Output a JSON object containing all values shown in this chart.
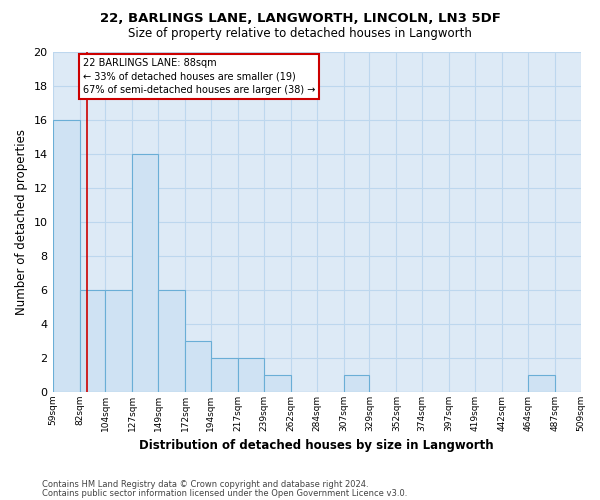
{
  "title1": "22, BARLINGS LANE, LANGWORTH, LINCOLN, LN3 5DF",
  "title2": "Size of property relative to detached houses in Langworth",
  "xlabel": "Distribution of detached houses by size in Langworth",
  "ylabel": "Number of detached properties",
  "bar_edges": [
    59,
    82,
    104,
    127,
    149,
    172,
    194,
    217,
    239,
    262,
    284,
    307,
    329,
    352,
    374,
    397,
    419,
    442,
    464,
    487,
    509
  ],
  "bar_heights": [
    16,
    6,
    6,
    14,
    6,
    3,
    2,
    2,
    1,
    0,
    0,
    1,
    0,
    0,
    0,
    0,
    0,
    0,
    1,
    0
  ],
  "bar_color": "#cfe2f3",
  "bar_edgecolor": "#6aaed6",
  "grid_color": "#bdd7ee",
  "bg_color": "#ddeaf6",
  "vline_x": 88,
  "vline_color": "#cc0000",
  "annotation_text": "22 BARLINGS LANE: 88sqm\n← 33% of detached houses are smaller (19)\n67% of semi-detached houses are larger (38) →",
  "annotation_box_facecolor": "#ffffff",
  "annotation_box_edgecolor": "#cc0000",
  "ylim": [
    0,
    20
  ],
  "yticks": [
    0,
    2,
    4,
    6,
    8,
    10,
    12,
    14,
    16,
    18,
    20
  ],
  "tick_labels": [
    "59sqm",
    "82sqm",
    "104sqm",
    "127sqm",
    "149sqm",
    "172sqm",
    "194sqm",
    "217sqm",
    "239sqm",
    "262sqm",
    "284sqm",
    "307sqm",
    "329sqm",
    "352sqm",
    "374sqm",
    "397sqm",
    "419sqm",
    "442sqm",
    "464sqm",
    "487sqm",
    "509sqm"
  ],
  "footnote1": "Contains HM Land Registry data © Crown copyright and database right 2024.",
  "footnote2": "Contains public sector information licensed under the Open Government Licence v3.0.",
  "fig_bg": "#ffffff"
}
